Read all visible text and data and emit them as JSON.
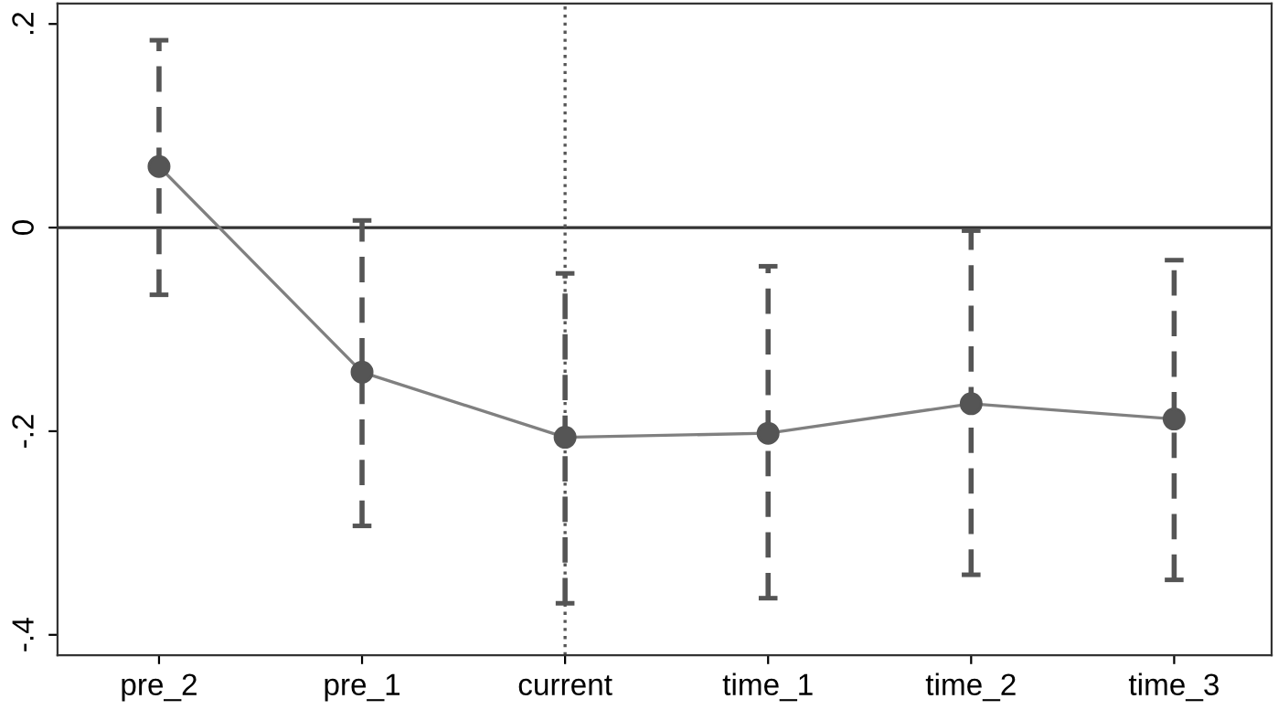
{
  "chart_data": {
    "type": "line",
    "categories": [
      "pre_2",
      "pre_1",
      "current",
      "time_1",
      "time_2",
      "time_3"
    ],
    "series": [
      {
        "color": "#555555",
        "values": [
          0.06,
          -0.142,
          -0.206,
          -0.202,
          -0.173,
          -0.188
        ],
        "errors": [
          [
            -0.066,
            0.184
          ],
          [
            -0.293,
            0.007
          ],
          [
            -0.369,
            -0.045
          ],
          [
            -0.364,
            -0.038
          ],
          [
            -0.341,
            -0.003
          ],
          [
            -0.346,
            -0.032
          ]
        ]
      }
    ],
    "ylim": [
      -0.42,
      0.22
    ],
    "yticks": [
      {
        "value": -0.4,
        "label": "-.4"
      },
      {
        "value": -0.2,
        "label": "-.2"
      },
      {
        "value": 0,
        "label": "0"
      },
      {
        "value": 0.2,
        "label": ".2"
      }
    ],
    "ref_lines": [
      {
        "axis": "y",
        "value": 0,
        "color": "#333333",
        "line_style": "solid"
      },
      {
        "axis": "x",
        "value": "current",
        "color": "#555555",
        "line_style": "dotted"
      }
    ],
    "marker": "circle",
    "line_style": "solid",
    "grid": false,
    "legend": false
  }
}
